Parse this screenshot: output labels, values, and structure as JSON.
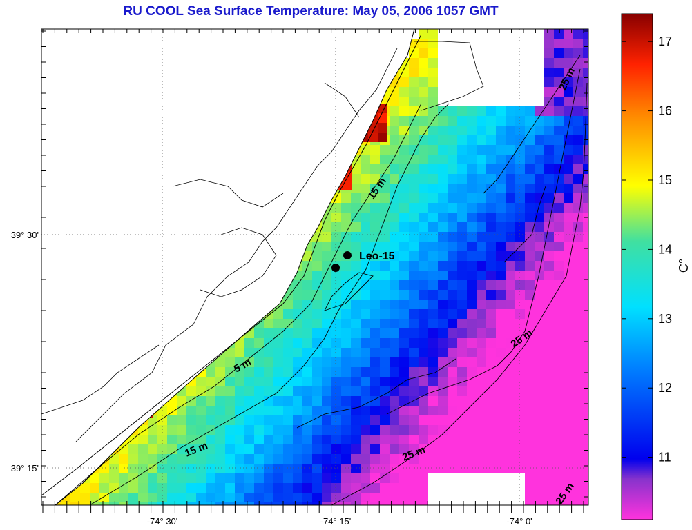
{
  "title": "RU COOL  Sea Surface Temperature:  May 05, 2006 1057 GMT",
  "map": {
    "x_ticks": [
      {
        "label": "-74° 30'",
        "lon": -74.5
      },
      {
        "label": "-74° 15'",
        "lon": -74.25
      },
      {
        "label": "-74° 0'",
        "lon": -74.0
      }
    ],
    "y_ticks": [
      {
        "label": "39° 30'",
        "lat": 39.5
      },
      {
        "label": "39° 15'",
        "lat": 39.25
      }
    ],
    "contour_labels": [
      "15 m",
      "5 m",
      "15 m",
      "25 m",
      "25 m",
      "25 m",
      "25 m"
    ],
    "station": {
      "label": "Leo-15"
    }
  },
  "colorbar": {
    "unit": "C°",
    "ticks": [
      "17",
      "16",
      "15",
      "14",
      "13",
      "12",
      "11"
    ],
    "min": 10.1,
    "max": 17.4
  },
  "colors": {
    "title": "#1a1acc",
    "land": "#ffffff",
    "contour": "#000000"
  }
}
